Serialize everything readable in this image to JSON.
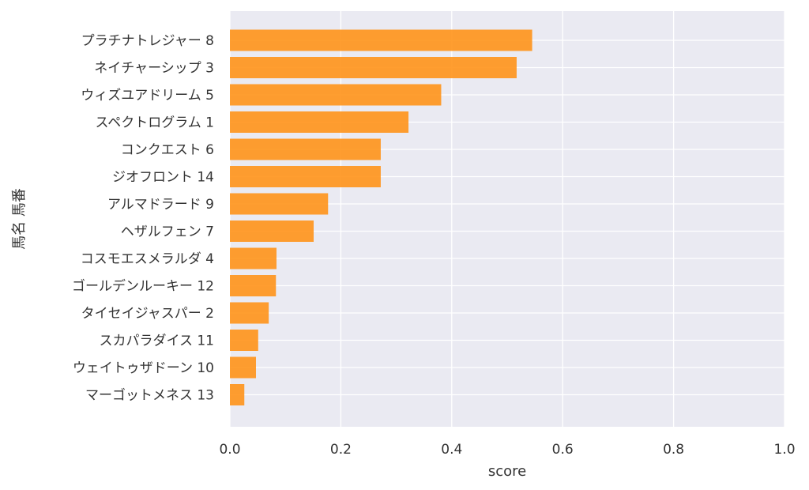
{
  "chart_data": {
    "type": "bar",
    "orientation": "horizontal",
    "categories": [
      "プラチナトレジャー 8",
      "ネイチャーシップ 3",
      "ウィズユアドリーム 5",
      "スペクトログラム 1",
      "コンクエスト 6",
      "ジオフロント 14",
      "アルマドラード 9",
      "ヘザルフェン 7",
      "コスモエスメラルダ 4",
      "ゴールデンルーキー 12",
      "タイセイジャスパー 2",
      "スカパラダイス 11",
      "ウェイトゥザドーン 10",
      "マーゴットメネス 13"
    ],
    "values": [
      0.545,
      0.517,
      0.381,
      0.322,
      0.272,
      0.272,
      0.177,
      0.151,
      0.084,
      0.083,
      0.07,
      0.051,
      0.047,
      0.026
    ],
    "xlabel": "score",
    "ylabel": "馬名 馬番",
    "xlim": [
      0,
      1.0
    ],
    "xticks": [
      "0.0",
      "0.2",
      "0.4",
      "0.6",
      "0.8",
      "1.0"
    ],
    "grid": true,
    "colors": {
      "bar": "#FF9419",
      "plot_bg": "#EAEAF2",
      "grid": "#FFFFFF"
    }
  }
}
